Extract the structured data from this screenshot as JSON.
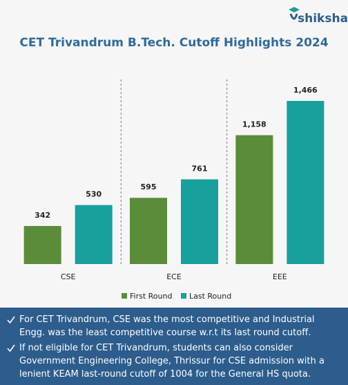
{
  "logo": "shiksha",
  "chart_data": {
    "type": "bar",
    "title": "CET Trivandrum B.Tech. Cutoff Highlights 2024",
    "categories": [
      "CSE",
      "ECE",
      "EEE"
    ],
    "series": [
      {
        "name": "First Round",
        "color": "#5b8c3a",
        "values": [
          342,
          595,
          1158
        ],
        "value_labels": [
          "342",
          "595",
          "1,158"
        ]
      },
      {
        "name": "Last Round",
        "color": "#17a09c",
        "values": [
          530,
          761,
          1466
        ],
        "value_labels": [
          "530",
          "761",
          "1,466"
        ]
      }
    ]
  },
  "notes": [
    "For CET Trivandrum, CSE was the most competitive and Industrial Engg. was the least competitive course w.r.t its last round cutoff.",
    "If not eligible for CET Trivandrum, students can also consider Government Engineering College, Thrissur for CSE admission with a lenient KEAM last-round cutoff of 1004 for the General HS quota."
  ]
}
